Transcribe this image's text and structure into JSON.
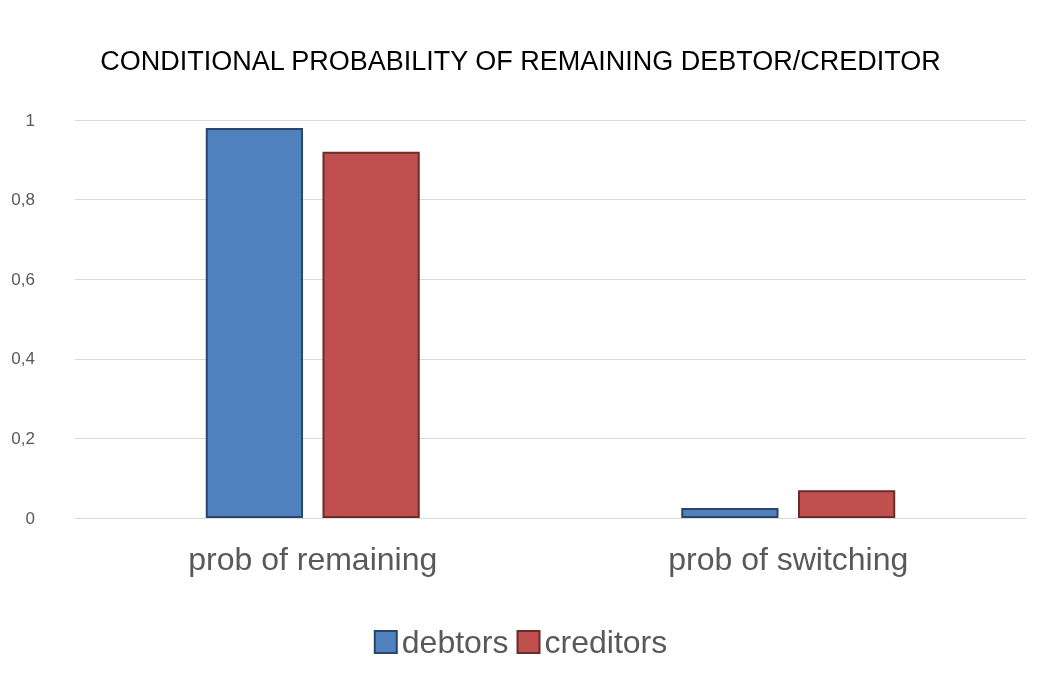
{
  "chart_data": {
    "type": "bar",
    "title": "CONDITIONAL PROBABILITY OF REMAINING DEBTOR/CREDITOR",
    "categories": [
      "prob of remaining",
      "prob of switching"
    ],
    "series": [
      {
        "name": "debtors",
        "color": "#4f81bd",
        "values": [
          0.98,
          0.025
        ]
      },
      {
        "name": "creditors",
        "color": "#c0504d",
        "values": [
          0.92,
          0.07
        ]
      }
    ],
    "ylim": [
      0,
      1
    ],
    "yticks": [
      0,
      {
        "value": 0.2,
        "label": "0,2"
      },
      {
        "value": 0.4,
        "label": "0,4"
      },
      {
        "value": 0.6,
        "label": "0,6"
      },
      {
        "value": 0.8,
        "label": "0,8"
      },
      1
    ],
    "grid": "y",
    "legend": "bottom"
  }
}
